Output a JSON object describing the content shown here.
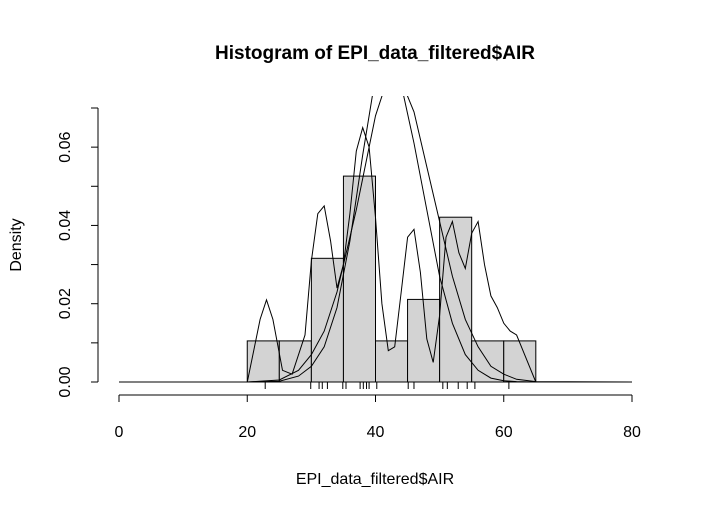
{
  "chart_data": {
    "type": "bar",
    "title": "Histogram of EPI_data_filtered$AIR",
    "xlabel": "EPI_data_filtered$AIR",
    "ylabel": "Density",
    "xlim": [
      0,
      80
    ],
    "ylim": [
      0,
      0.07
    ],
    "xticks": [
      "0",
      "20",
      "40",
      "60",
      "80"
    ],
    "yticks": [
      "0.00",
      "0.02",
      "0.04",
      "0.06"
    ],
    "bin_edges": [
      20,
      25,
      30,
      35,
      40,
      45,
      50,
      55,
      60,
      65
    ],
    "values": [
      0.0105,
      0.0105,
      0.0316,
      0.0526,
      0.0105,
      0.0211,
      0.0421,
      0.0105,
      0.0105
    ],
    "rug": [
      22.8,
      29.9,
      31.2,
      31.7,
      32.5,
      34.9,
      35.4,
      37.6,
      38.1,
      38.6,
      39.0,
      40.2,
      45.1,
      46.0,
      50.5,
      51.2,
      52.9,
      54.3,
      55.5,
      60.8
    ],
    "density_curves": [
      {
        "x": [
          0,
          20,
          22,
          23,
          24,
          25.5,
          27,
          29,
          30,
          31,
          32,
          33,
          34,
          35,
          36,
          37,
          38,
          39,
          40,
          41,
          42,
          43,
          44,
          45,
          46,
          47,
          48,
          49,
          50,
          51,
          52,
          53,
          54,
          55,
          56,
          57,
          58,
          59,
          60,
          61,
          62,
          63,
          65,
          80
        ],
        "y": [
          0,
          0,
          0.016,
          0.021,
          0.016,
          0.003,
          0.002,
          0.012,
          0.031,
          0.043,
          0.045,
          0.036,
          0.024,
          0.03,
          0.043,
          0.059,
          0.065,
          0.06,
          0.042,
          0.02,
          0.008,
          0.009,
          0.023,
          0.037,
          0.039,
          0.028,
          0.011,
          0.005,
          0.017,
          0.037,
          0.041,
          0.033,
          0.029,
          0.038,
          0.041,
          0.03,
          0.022,
          0.019,
          0.015,
          0.013,
          0.012,
          0.008,
          0,
          0
        ]
      },
      {
        "x": [
          0,
          20,
          25,
          28,
          30,
          32,
          34,
          36,
          37,
          38,
          40,
          42,
          44,
          46,
          48,
          50,
          52,
          54,
          56,
          58,
          60,
          62,
          65,
          80
        ],
        "y": [
          0,
          0,
          0.0005,
          0.003,
          0.007,
          0.013,
          0.023,
          0.037,
          0.044,
          0.052,
          0.068,
          0.078,
          0.077,
          0.069,
          0.055,
          0.041,
          0.027,
          0.016,
          0.009,
          0.004,
          0.002,
          0.0007,
          0.0001,
          0
        ]
      },
      {
        "x": [
          0,
          20,
          25,
          28,
          30,
          32,
          34,
          36,
          38,
          40,
          41,
          42,
          44,
          46,
          48,
          50,
          52,
          54,
          56,
          58,
          60,
          62,
          65,
          80
        ],
        "y": [
          0,
          0,
          0.0002,
          0.0015,
          0.004,
          0.009,
          0.019,
          0.036,
          0.058,
          0.078,
          0.084,
          0.084,
          0.076,
          0.061,
          0.044,
          0.027,
          0.015,
          0.007,
          0.003,
          0.001,
          0.0003,
          0.0001,
          0,
          0
        ]
      }
    ],
    "grid": false
  }
}
